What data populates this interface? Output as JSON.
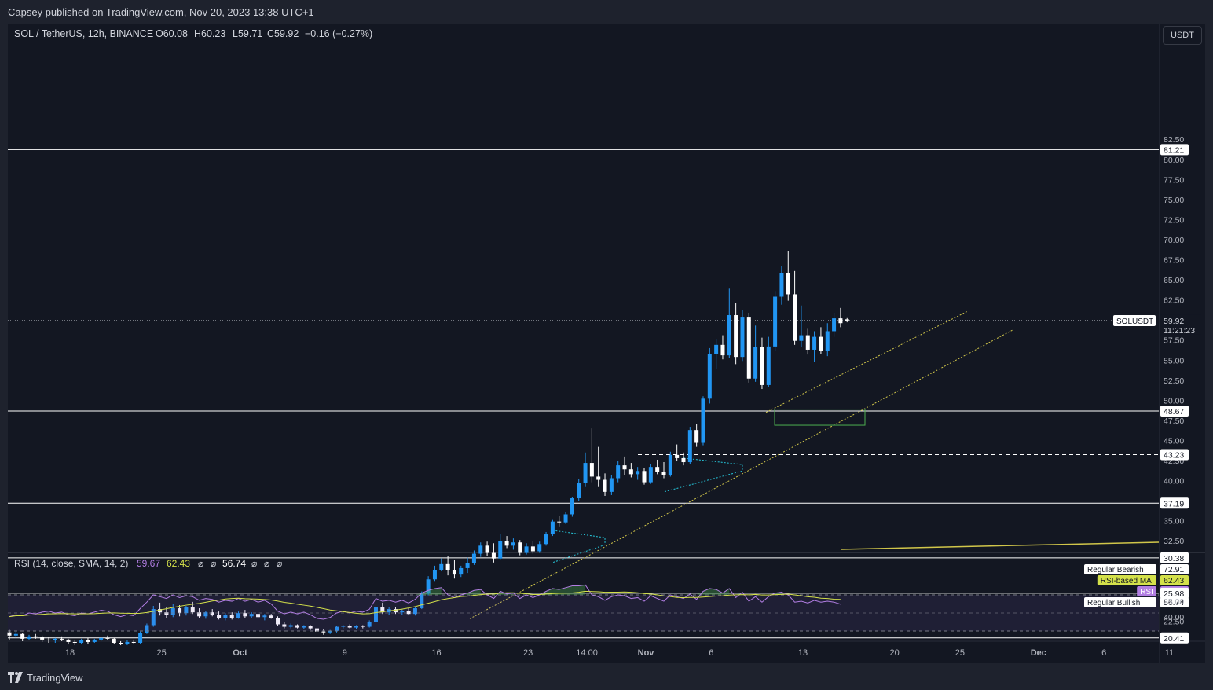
{
  "header": {
    "published": "Capsey published on TradingView.com, Nov 20, 2023 13:38 UTC+1"
  },
  "legend": {
    "symbol": "SOL / TetherUS, 12h, BINANCE",
    "open": "O60.08",
    "high": "H60.23",
    "low": "L59.71",
    "close": "C59.92",
    "change": "−0.16 (−0.27%)"
  },
  "rsi_legend": {
    "label": "RSI (14, close, SMA, 14, 2)",
    "rsi": "59.67",
    "ma": "62.43",
    "na1": "⌀",
    "na2": "⌀",
    "val": "56.74",
    "na3": "⌀",
    "na4": "⌀",
    "na5": "⌀"
  },
  "currency_button": "USDT",
  "footer": {
    "brand": "TradingView"
  },
  "colors": {
    "up": "#2196f3",
    "down": "#ffffff",
    "rsi_line": "#b27ee3",
    "rsi_ma": "#d4e14a",
    "trend": "#d1c64a",
    "zone": "#4caf50",
    "bg": "#131722"
  },
  "chart_data": {
    "type": "candlestick",
    "interval": "12h",
    "symbol": "SOLUSDT",
    "y_axis": {
      "ticks": [
        "82.50",
        "80.00",
        "77.50",
        "75.00",
        "72.50",
        "70.00",
        "67.50",
        "65.00",
        "62.50",
        "57.50",
        "55.00",
        "52.50",
        "50.00",
        "47.50",
        "45.00",
        "42.50",
        "40.00",
        "35.00",
        "32.50",
        "25.00",
        "22.50"
      ]
    },
    "x_axis": {
      "ticks": [
        {
          "label": "18",
          "pos": 0.0
        },
        {
          "label": "25",
          "pos": 7.0
        },
        {
          "label": "Oct",
          "pos": 13.0
        },
        {
          "label": "9",
          "pos": 21.0
        },
        {
          "label": "16",
          "pos": 28.0
        },
        {
          "label": "23",
          "pos": 35.0
        },
        {
          "label": "14:00",
          "pos": 39.5
        },
        {
          "label": "Nov",
          "pos": 44.0
        },
        {
          "label": "6",
          "pos": 49.0
        },
        {
          "label": "13",
          "pos": 56.0
        },
        {
          "label": "20",
          "pos": 63.0
        },
        {
          "label": "25",
          "pos": 68.0
        },
        {
          "label": "Dec",
          "pos": 74.0
        },
        {
          "label": "6",
          "pos": 79.0
        },
        {
          "label": "11",
          "pos": 84.0
        }
      ]
    },
    "levels": [
      {
        "label": "81.21",
        "value": 81.21,
        "style": "solid"
      },
      {
        "label": "48.67",
        "value": 48.67,
        "style": "solid"
      },
      {
        "label": "43.23",
        "value": 43.23,
        "style": "dashed"
      },
      {
        "label": "37.19",
        "value": 37.19,
        "style": "solid"
      },
      {
        "label": "30.38",
        "value": 30.38,
        "style": "solid"
      },
      {
        "label": "25.98",
        "value": 25.98,
        "style": "solid"
      },
      {
        "label": "20.41",
        "value": 20.41,
        "style": "solid"
      }
    ],
    "last_price": {
      "label": "59.92",
      "value": 59.92,
      "symbol_tag": "SOLUSDT",
      "countdown": "11:21:23"
    },
    "candles": [
      [
        21.1,
        21.4,
        20.2,
        20.7
      ],
      [
        20.7,
        21.2,
        20.4,
        20.9
      ],
      [
        20.9,
        21.0,
        20.0,
        20.3
      ],
      [
        20.3,
        20.8,
        20.1,
        20.6
      ],
      [
        20.6,
        20.9,
        20.3,
        20.5
      ],
      [
        20.5,
        20.7,
        19.9,
        20.2
      ],
      [
        20.2,
        20.5,
        19.8,
        20.1
      ],
      [
        20.1,
        20.4,
        19.8,
        20.3
      ],
      [
        20.3,
        20.6,
        20.0,
        20.2
      ],
      [
        20.2,
        20.3,
        19.6,
        19.9
      ],
      [
        19.9,
        20.2,
        19.5,
        19.8
      ],
      [
        19.8,
        20.3,
        19.6,
        20.1
      ],
      [
        20.1,
        20.4,
        19.7,
        19.9
      ],
      [
        19.9,
        20.3,
        19.8,
        20.2
      ],
      [
        20.2,
        20.5,
        20.0,
        20.4
      ],
      [
        20.4,
        20.7,
        20.1,
        20.3
      ],
      [
        20.3,
        20.4,
        19.7,
        19.8
      ],
      [
        19.8,
        20.0,
        19.5,
        19.7
      ],
      [
        19.7,
        20.1,
        19.5,
        19.9
      ],
      [
        19.9,
        20.2,
        19.6,
        19.8
      ],
      [
        19.8,
        21.2,
        19.7,
        21.0
      ],
      [
        21.0,
        22.2,
        20.9,
        22.0
      ],
      [
        22.0,
        24.4,
        21.8,
        24.0
      ],
      [
        24.0,
        24.8,
        23.2,
        23.6
      ],
      [
        23.6,
        24.3,
        22.9,
        23.3
      ],
      [
        23.3,
        24.6,
        23.0,
        24.1
      ],
      [
        24.1,
        24.5,
        23.1,
        23.5
      ],
      [
        23.5,
        24.4,
        23.2,
        24.2
      ],
      [
        24.2,
        24.9,
        23.4,
        23.6
      ],
      [
        23.6,
        24.1,
        22.9,
        23.1
      ],
      [
        23.1,
        23.8,
        22.8,
        23.6
      ],
      [
        23.6,
        24.0,
        23.1,
        23.3
      ],
      [
        23.3,
        23.7,
        22.7,
        22.9
      ],
      [
        22.9,
        23.5,
        22.6,
        23.3
      ],
      [
        23.3,
        23.6,
        22.7,
        22.9
      ],
      [
        22.9,
        23.7,
        22.8,
        23.5
      ],
      [
        23.5,
        23.9,
        22.9,
        23.1
      ],
      [
        23.1,
        23.6,
        22.9,
        23.4
      ],
      [
        23.4,
        23.6,
        22.8,
        23.0
      ],
      [
        23.0,
        23.4,
        22.6,
        23.2
      ],
      [
        23.2,
        23.4,
        22.8,
        22.9
      ],
      [
        22.9,
        23.1,
        21.9,
        22.1
      ],
      [
        22.1,
        22.4,
        21.6,
        21.8
      ],
      [
        21.8,
        22.2,
        21.6,
        22.0
      ],
      [
        22.0,
        22.1,
        21.6,
        21.7
      ],
      [
        21.7,
        22.0,
        21.5,
        21.9
      ],
      [
        21.9,
        22.0,
        21.4,
        21.6
      ],
      [
        21.6,
        21.8,
        21.0,
        21.2
      ],
      [
        21.2,
        21.5,
        20.8,
        21.1
      ],
      [
        21.1,
        21.4,
        20.9,
        21.3
      ],
      [
        21.3,
        21.9,
        21.1,
        21.8
      ],
      [
        21.8,
        22.0,
        21.6,
        21.9
      ],
      [
        21.9,
        22.1,
        21.6,
        21.7
      ],
      [
        21.7,
        22.0,
        21.5,
        21.9
      ],
      [
        21.9,
        22.0,
        21.6,
        21.8
      ],
      [
        21.8,
        22.6,
        21.7,
        22.4
      ],
      [
        22.4,
        24.6,
        22.3,
        24.2
      ],
      [
        24.2,
        24.8,
        23.4,
        23.6
      ],
      [
        23.6,
        24.2,
        23.3,
        24.0
      ],
      [
        24.0,
        24.3,
        23.4,
        23.6
      ],
      [
        23.6,
        24.0,
        23.3,
        23.8
      ],
      [
        23.8,
        24.1,
        23.3,
        23.4
      ],
      [
        23.4,
        24.2,
        23.2,
        24.1
      ],
      [
        24.1,
        26.2,
        24.0,
        25.9
      ],
      [
        25.9,
        28.1,
        25.7,
        27.7
      ],
      [
        27.7,
        29.4,
        27.5,
        28.9
      ],
      [
        28.9,
        30.3,
        28.7,
        29.6
      ],
      [
        29.6,
        30.6,
        28.2,
        28.9
      ],
      [
        28.9,
        30.1,
        27.8,
        28.3
      ],
      [
        28.3,
        29.4,
        28.0,
        29.1
      ],
      [
        29.1,
        30.4,
        28.5,
        29.7
      ],
      [
        29.7,
        31.3,
        29.5,
        30.9
      ],
      [
        30.9,
        32.3,
        30.5,
        31.9
      ],
      [
        31.9,
        32.4,
        30.6,
        31.0
      ],
      [
        31.0,
        32.2,
        29.8,
        30.3
      ],
      [
        30.3,
        33.4,
        30.2,
        32.5
      ],
      [
        32.5,
        33.1,
        31.6,
        31.9
      ],
      [
        31.9,
        32.8,
        31.4,
        32.3
      ],
      [
        32.3,
        32.6,
        30.7,
        31.0
      ],
      [
        31.0,
        32.2,
        30.8,
        31.8
      ],
      [
        31.8,
        32.5,
        30.9,
        31.2
      ],
      [
        31.2,
        32.4,
        31.0,
        32.1
      ],
      [
        32.1,
        33.6,
        31.9,
        33.3
      ],
      [
        33.3,
        35.1,
        33.1,
        34.9
      ],
      [
        34.9,
        35.6,
        34.3,
        34.8
      ],
      [
        34.8,
        36.1,
        34.6,
        35.8
      ],
      [
        35.8,
        38.0,
        35.5,
        37.8
      ],
      [
        37.8,
        40.2,
        37.5,
        39.7
      ],
      [
        39.7,
        43.5,
        39.2,
        42.2
      ],
      [
        42.2,
        46.5,
        39.8,
        40.5
      ],
      [
        40.5,
        44.2,
        39.2,
        40.1
      ],
      [
        40.1,
        40.9,
        38.1,
        38.6
      ],
      [
        38.6,
        40.7,
        38.2,
        40.3
      ],
      [
        40.3,
        42.4,
        39.8,
        41.9
      ],
      [
        41.9,
        43.0,
        40.7,
        41.4
      ],
      [
        41.4,
        42.2,
        40.4,
        40.8
      ],
      [
        40.8,
        41.7,
        40.1,
        41.2
      ],
      [
        41.2,
        41.6,
        39.5,
        39.8
      ],
      [
        39.8,
        42.1,
        39.6,
        41.7
      ],
      [
        41.7,
        42.6,
        40.8,
        41.1
      ],
      [
        41.1,
        42.3,
        40.3,
        40.7
      ],
      [
        40.7,
        43.6,
        40.5,
        43.2
      ],
      [
        43.2,
        44.5,
        42.4,
        42.8
      ],
      [
        42.8,
        43.5,
        41.9,
        42.3
      ],
      [
        42.3,
        46.7,
        42.1,
        46.3
      ],
      [
        46.3,
        47.1,
        44.2,
        44.7
      ],
      [
        44.7,
        50.5,
        44.4,
        50.2
      ],
      [
        50.2,
        56.5,
        49.6,
        55.8
      ],
      [
        55.8,
        57.6,
        53.9,
        56.9
      ],
      [
        56.9,
        58.1,
        55.1,
        55.6
      ],
      [
        55.6,
        63.9,
        55.3,
        60.6
      ],
      [
        60.6,
        62.1,
        54.5,
        55.4
      ],
      [
        55.4,
        61.2,
        54.9,
        60.3
      ],
      [
        60.3,
        60.9,
        52.2,
        52.7
      ],
      [
        52.7,
        59.3,
        52.3,
        56.6
      ],
      [
        56.6,
        57.8,
        51.4,
        51.9
      ],
      [
        51.9,
        57.9,
        51.6,
        56.7
      ],
      [
        56.7,
        63.6,
        56.2,
        62.9
      ],
      [
        62.9,
        66.7,
        61.9,
        65.8
      ],
      [
        65.8,
        68.6,
        62.4,
        63.2
      ],
      [
        63.2,
        66.1,
        56.9,
        57.4
      ],
      [
        57.4,
        61.8,
        56.6,
        58.1
      ],
      [
        58.1,
        58.9,
        55.7,
        56.3
      ],
      [
        56.3,
        58.6,
        54.8,
        57.9
      ],
      [
        57.9,
        59.1,
        55.8,
        56.2
      ],
      [
        56.2,
        59.6,
        55.5,
        58.6
      ],
      [
        58.6,
        60.9,
        57.9,
        60.2
      ],
      [
        60.2,
        61.5,
        59.1,
        59.6
      ],
      [
        60.08,
        60.23,
        59.71,
        59.92
      ]
    ],
    "rsi": {
      "levels": {
        "upper": 70,
        "lower": 30
      },
      "labels": [
        {
          "text": "Regular Bearish",
          "value": "72.91"
        },
        {
          "text": "RSI-based MA",
          "value": "62.43"
        },
        {
          "text": "RSI",
          "value": "59.67"
        },
        {
          "text": "Regular Bullish",
          "value": "56.74"
        }
      ],
      "axis_tick": "40.00",
      "values": [
        46,
        48,
        47,
        50,
        49,
        51,
        52,
        50,
        51,
        48,
        47,
        50,
        49,
        51,
        53,
        52,
        48,
        46,
        48,
        47,
        55,
        62,
        70,
        68,
        66,
        70,
        67,
        69,
        68,
        64,
        66,
        65,
        62,
        64,
        63,
        66,
        63,
        65,
        62,
        64,
        60,
        52,
        49,
        51,
        49,
        51,
        48,
        44,
        43,
        45,
        50,
        52,
        50,
        52,
        51,
        54,
        66,
        63,
        64,
        62,
        64,
        61,
        65,
        72,
        75,
        77,
        78,
        70,
        67,
        70,
        72,
        75,
        76,
        70,
        66,
        74,
        71,
        72,
        66,
        70,
        67,
        70,
        74,
        77,
        76,
        78,
        80,
        80,
        81,
        70,
        68,
        64,
        68,
        70,
        69,
        66,
        67,
        63,
        69,
        66,
        63,
        70,
        68,
        66,
        71,
        65,
        74,
        77,
        76,
        72,
        77,
        67,
        73,
        63,
        68,
        62,
        68,
        72,
        73,
        70,
        62,
        63,
        61,
        64,
        62,
        63,
        62,
        59.67
      ]
    }
  }
}
